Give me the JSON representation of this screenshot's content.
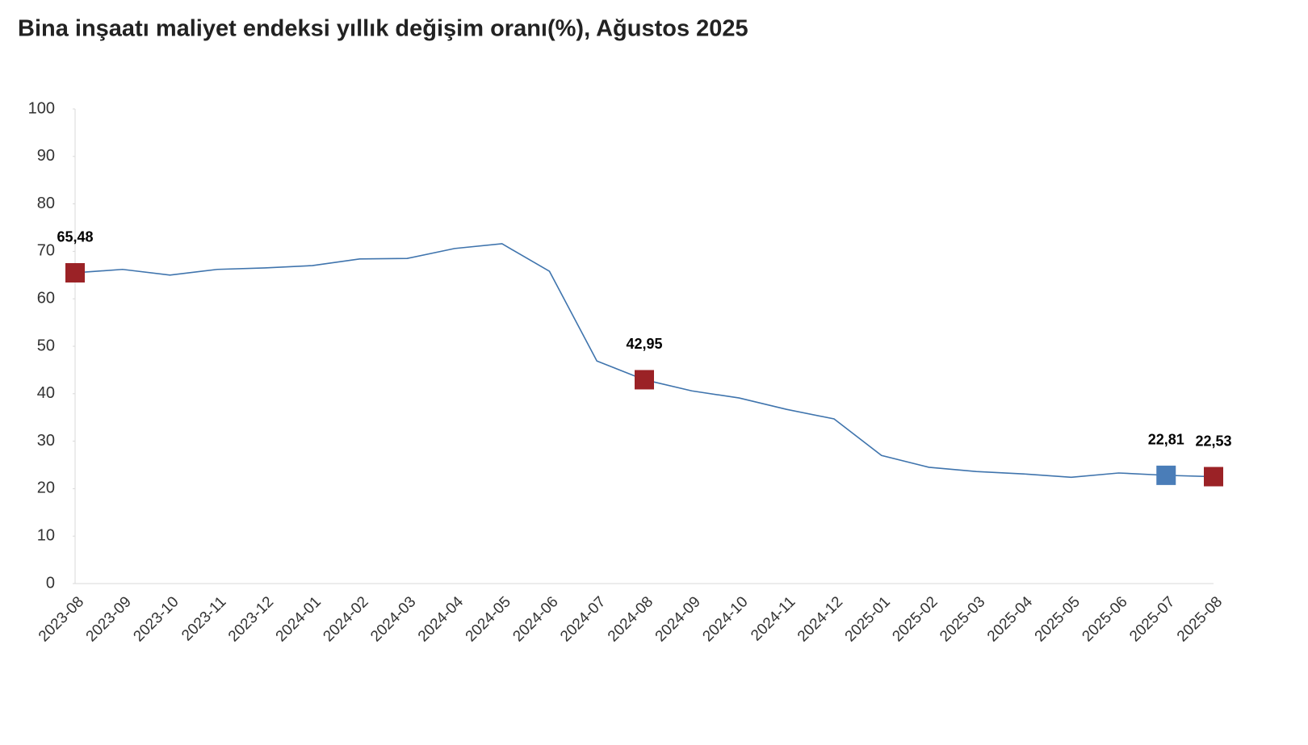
{
  "chart_data": {
    "type": "line",
    "title": "Bina inşaatı maliyet endeksi yıllık değişim oranı(%), Ağustos 2025",
    "categories": [
      "2023-08",
      "2023-09",
      "2023-10",
      "2023-11",
      "2023-12",
      "2024-01",
      "2024-02",
      "2024-03",
      "2024-04",
      "2024-05",
      "2024-06",
      "2024-07",
      "2024-08",
      "2024-09",
      "2024-10",
      "2024-11",
      "2024-12",
      "2025-01",
      "2025-02",
      "2025-03",
      "2025-04",
      "2025-05",
      "2025-06",
      "2025-07",
      "2025-08"
    ],
    "values": [
      65.48,
      66.2,
      65.0,
      66.2,
      66.5,
      67.0,
      68.4,
      68.5,
      70.6,
      71.6,
      65.8,
      46.9,
      42.95,
      40.6,
      39.1,
      36.7,
      34.7,
      27.0,
      24.5,
      23.6,
      23.1,
      22.4,
      23.3,
      22.81,
      22.53
    ],
    "value_labels": [
      "65,48",
      null,
      null,
      null,
      null,
      null,
      null,
      null,
      null,
      null,
      null,
      null,
      "42,95",
      null,
      null,
      null,
      null,
      null,
      null,
      null,
      null,
      null,
      null,
      "22,81",
      "22,53"
    ],
    "marker_colors": [
      "#9b2226",
      null,
      null,
      null,
      null,
      null,
      null,
      null,
      null,
      null,
      null,
      null,
      "#9b2226",
      null,
      null,
      null,
      null,
      null,
      null,
      null,
      null,
      null,
      null,
      "#4a7db8",
      "#9b2226"
    ],
    "color": "#3f74ad",
    "ylim": [
      0,
      100
    ],
    "yticks": [
      0,
      10,
      20,
      30,
      40,
      50,
      60,
      70,
      80,
      90,
      100
    ],
    "grid": false
  }
}
